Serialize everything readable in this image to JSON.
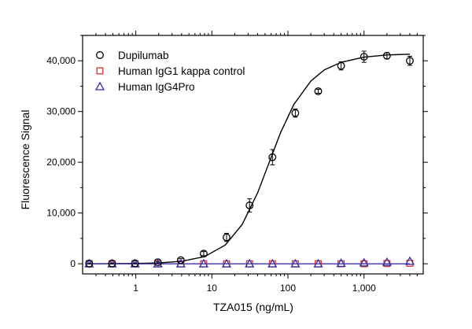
{
  "chart_data": {
    "type": "scatter",
    "title": "",
    "xlabel": "TZA015 (ng/mL)",
    "ylabel": "Fluorescence Signal",
    "x_scale": "log",
    "xlim": [
      0.2,
      6000
    ],
    "ylim": [
      -2000,
      45000
    ],
    "x_ticks": [
      1,
      10,
      100,
      1000
    ],
    "x_tick_labels": [
      "1",
      "10",
      "100",
      "1,000"
    ],
    "y_ticks": [
      0,
      10000,
      20000,
      30000,
      40000
    ],
    "y_tick_labels": [
      "0",
      "10,000",
      "20,000",
      "30,000",
      "40,000"
    ],
    "grid": false,
    "legend_position": "top-left",
    "x": [
      0.244,
      0.488,
      0.977,
      1.95,
      3.91,
      7.81,
      15.6,
      31.3,
      62.5,
      125,
      250,
      500,
      1000,
      2000,
      4000
    ],
    "series": [
      {
        "name": "Dupilumab",
        "marker": "circle",
        "color": "#000000",
        "values": [
          50,
          60,
          80,
          300,
          700,
          2000,
          5200,
          11500,
          21000,
          29700,
          34000,
          39000,
          40800,
          41000,
          40000
        ],
        "error": [
          100,
          100,
          100,
          200,
          300,
          400,
          800,
          1300,
          1500,
          800,
          400,
          800,
          1100,
          600,
          900
        ],
        "fit": [
          [
            0.244,
            7
          ],
          [
            0.5,
            20
          ],
          [
            1,
            57
          ],
          [
            2,
            167
          ],
          [
            4,
            488
          ],
          [
            8,
            1404
          ],
          [
            15,
            3681
          ],
          [
            25,
            7722
          ],
          [
            40,
            14000
          ],
          [
            60,
            20910
          ],
          [
            80,
            25850
          ],
          [
            120,
            31440
          ],
          [
            200,
            36000
          ],
          [
            300,
            38200
          ],
          [
            500,
            39700
          ],
          [
            1000,
            40720
          ],
          [
            2000,
            41150
          ],
          [
            4000,
            41300
          ]
        ]
      },
      {
        "name": "Human IgG1 kappa control",
        "marker": "square",
        "color": "#e0302a",
        "values": [
          0,
          0,
          0,
          0,
          0,
          0,
          0,
          0,
          0,
          0,
          0,
          0,
          0,
          50,
          100
        ]
      },
      {
        "name": "Human IgG4Pro",
        "marker": "triangle",
        "color": "#3030b0",
        "values": [
          0,
          0,
          0,
          0,
          0,
          0,
          0,
          0,
          0,
          0,
          0,
          100,
          200,
          300,
          500
        ]
      }
    ]
  }
}
